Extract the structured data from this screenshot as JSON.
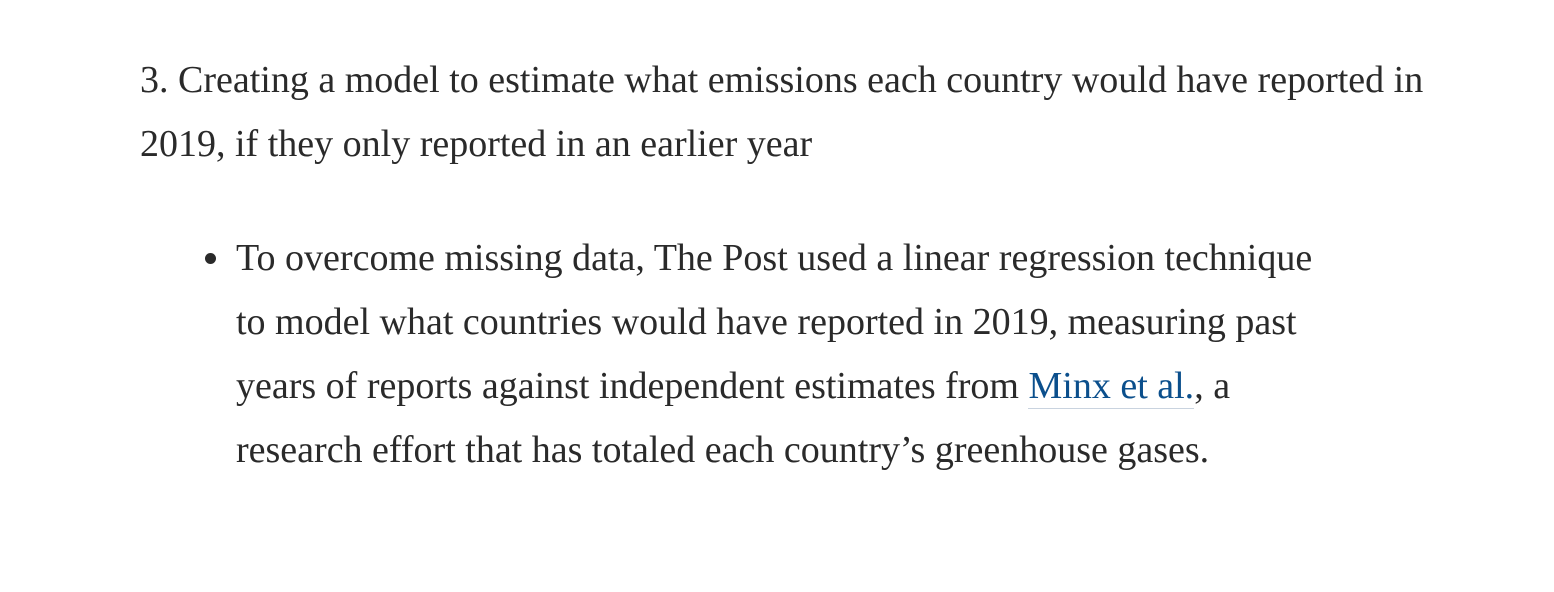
{
  "section": {
    "heading": "3. Creating a model to estimate what emissions each country would have reported in 2019, if they only reported in an earlier year",
    "bullets": [
      {
        "text_before": "To overcome missing data, The Post used a linear regression technique to model what countries would have reported in 2019, measuring past years of reports against independent estimates from ",
        "link_text": "Minx et al.",
        "text_after": ", a research effort that has totaled each country’s greenhouse gases."
      }
    ]
  },
  "colors": {
    "text": "#2a2a2a",
    "link": "#0b4f8c"
  }
}
